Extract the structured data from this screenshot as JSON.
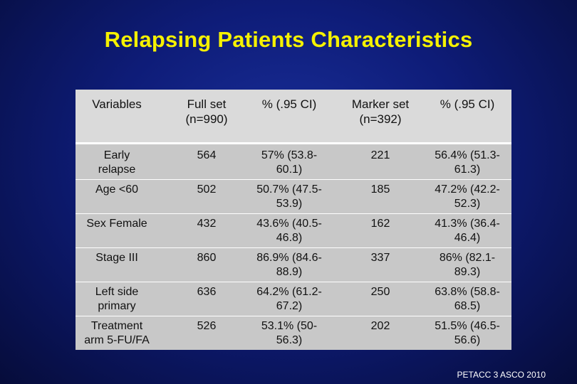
{
  "slide": {
    "title": "Relapsing Patients Characteristics",
    "footer": "PETACC 3 ASCO 2010"
  },
  "table": {
    "headers": [
      {
        "line1": "Variables",
        "line2": ""
      },
      {
        "line1": "Full set",
        "line2": "(n=990)"
      },
      {
        "line1": "% (.95 CI)",
        "line2": ""
      },
      {
        "line1": "Marker set",
        "line2": "(n=392)"
      },
      {
        "line1": "% (.95 CI)",
        "line2": ""
      }
    ],
    "rows": [
      [
        {
          "l1": "Early",
          "l2": "relapse"
        },
        {
          "l1": "564",
          "l2": ""
        },
        {
          "l1": "57% (53.8-",
          "l2": "60.1)"
        },
        {
          "l1": "221",
          "l2": ""
        },
        {
          "l1": "56.4% (51.3-",
          "l2": "61.3)"
        }
      ],
      [
        {
          "l1": "Age <60",
          "l2": ""
        },
        {
          "l1": "502",
          "l2": ""
        },
        {
          "l1": "50.7% (47.5-",
          "l2": "53.9)"
        },
        {
          "l1": "185",
          "l2": ""
        },
        {
          "l1": "47.2% (42.2-",
          "l2": "52.3)"
        }
      ],
      [
        {
          "l1": "Sex Female",
          "l2": ""
        },
        {
          "l1": "432",
          "l2": ""
        },
        {
          "l1": "43.6% (40.5-",
          "l2": "46.8)"
        },
        {
          "l1": "162",
          "l2": ""
        },
        {
          "l1": "41.3% (36.4-",
          "l2": "46.4)"
        }
      ],
      [
        {
          "l1": "Stage III",
          "l2": ""
        },
        {
          "l1": "860",
          "l2": ""
        },
        {
          "l1": "86.9% (84.6-",
          "l2": "88.9)"
        },
        {
          "l1": "337",
          "l2": ""
        },
        {
          "l1": "86% (82.1-",
          "l2": "89.3)"
        }
      ],
      [
        {
          "l1": "Left side",
          "l2": "primary"
        },
        {
          "l1": "636",
          "l2": ""
        },
        {
          "l1": "64.2% (61.2-",
          "l2": "67.2)"
        },
        {
          "l1": "250",
          "l2": ""
        },
        {
          "l1": "63.8% (58.8-",
          "l2": "68.5)"
        }
      ],
      [
        {
          "l1": "Treatment",
          "l2": "arm 5-FU/FA"
        },
        {
          "l1": "526",
          "l2": ""
        },
        {
          "l1": "53.1% (50-",
          "l2": "56.3)"
        },
        {
          "l1": "202",
          "l2": ""
        },
        {
          "l1": "51.5% (46.5-",
          "l2": "56.6)"
        }
      ]
    ]
  }
}
